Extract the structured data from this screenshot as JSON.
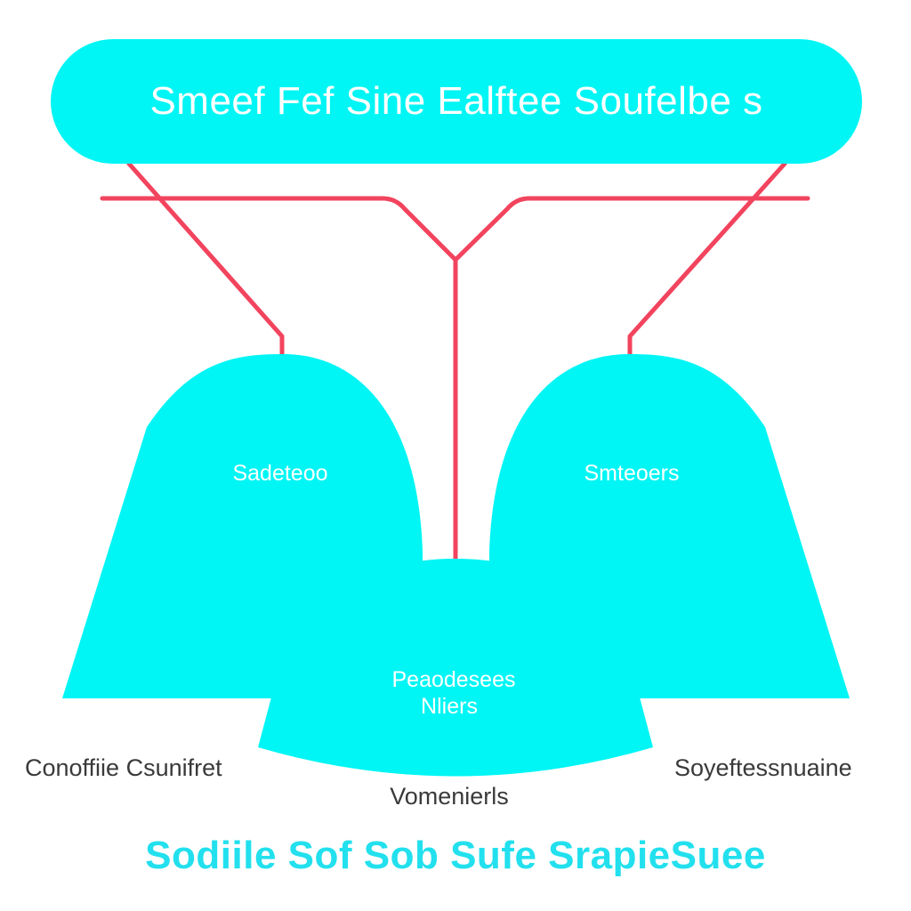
{
  "colors": {
    "shape_fill": "#00f5f5",
    "connector": "#f2445e",
    "caption_text": "#3a3a3a",
    "footer_text": "#22e0ee"
  },
  "title": "Smeef Fef Sine Ealftee Soufelbe s",
  "nodes": {
    "left": "Sadeteoo",
    "right": "Smteoers",
    "bottom_line1": "Peaodesees",
    "bottom_line2": "Nliers"
  },
  "captions": {
    "left": "Conoffiie Csunifret",
    "right": "Soyeftessnuaine",
    "center": "Vomenierls"
  },
  "footer": "Sodiile  Sof  Sob  Sufe  SrapieSuee"
}
